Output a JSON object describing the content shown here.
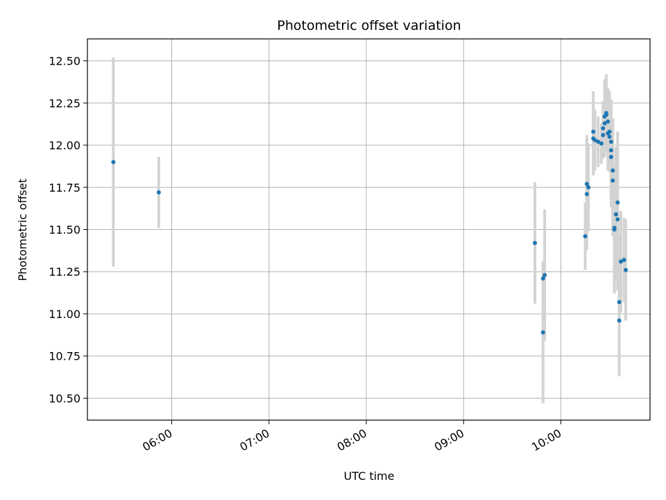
{
  "chart_data": {
    "type": "scatter",
    "title": "Photometric offset variation",
    "xlabel": "UTC time",
    "ylabel": "Photometric offset",
    "x_ticks": [
      "06:00",
      "07:00",
      "08:00",
      "09:00",
      "10:00"
    ],
    "y_ticks": [
      "10.50",
      "10.75",
      "11.00",
      "11.25",
      "11.50",
      "11.75",
      "12.00",
      "12.25",
      "12.50"
    ],
    "xlim": [
      "05:08",
      "10:55"
    ],
    "ylim": [
      10.37,
      12.63
    ],
    "grid": true,
    "colors": {
      "point": "#1f77b4",
      "errorbar": "#d3d3d3",
      "grid": "#b0b0b0"
    },
    "points": [
      {
        "x": "05:24",
        "y": 11.9,
        "err": 0.62
      },
      {
        "x": "05:52",
        "y": 11.72,
        "err": 0.21
      },
      {
        "x": "09:44",
        "y": 11.42,
        "err": 0.36
      },
      {
        "x": "09:49",
        "y": 10.89,
        "err": 0.42
      },
      {
        "x": "09:49",
        "y": 11.21,
        "err": 0.1
      },
      {
        "x": "09:50",
        "y": 11.23,
        "err": 0.39
      },
      {
        "x": "10:15",
        "y": 11.46,
        "err": 0.2
      },
      {
        "x": "10:16",
        "y": 11.77,
        "err": 0.29
      },
      {
        "x": "10:16",
        "y": 11.71,
        "err": 0.33
      },
      {
        "x": "10:17",
        "y": 11.75,
        "err": 0.26
      },
      {
        "x": "10:20",
        "y": 12.04,
        "err": 0.22
      },
      {
        "x": "10:20",
        "y": 12.08,
        "err": 0.24
      },
      {
        "x": "10:21",
        "y": 12.03,
        "err": 0.18
      },
      {
        "x": "10:23",
        "y": 12.02,
        "err": 0.15
      },
      {
        "x": "10:25",
        "y": 12.01,
        "err": 0.12
      },
      {
        "x": "10:26",
        "y": 12.06,
        "err": 0.14
      },
      {
        "x": "10:26",
        "y": 12.1,
        "err": 0.16
      },
      {
        "x": "10:27",
        "y": 12.13,
        "err": 0.2
      },
      {
        "x": "10:27",
        "y": 12.17,
        "err": 0.22
      },
      {
        "x": "10:28",
        "y": 12.19,
        "err": 0.23
      },
      {
        "x": "10:28",
        "y": 12.18,
        "err": 0.21
      },
      {
        "x": "10:29",
        "y": 12.14,
        "err": 0.2
      },
      {
        "x": "10:29",
        "y": 12.07,
        "err": 0.22
      },
      {
        "x": "10:30",
        "y": 12.05,
        "err": 0.21
      },
      {
        "x": "10:30",
        "y": 12.08,
        "err": 0.24
      },
      {
        "x": "10:31",
        "y": 12.02,
        "err": 0.25
      },
      {
        "x": "10:31",
        "y": 11.97,
        "err": 0.28
      },
      {
        "x": "10:31",
        "y": 11.93,
        "err": 0.3
      },
      {
        "x": "10:32",
        "y": 11.85,
        "err": 0.31
      },
      {
        "x": "10:32",
        "y": 11.79,
        "err": 0.33
      },
      {
        "x": "10:33",
        "y": 11.51,
        "err": 0.37
      },
      {
        "x": "10:33",
        "y": 11.5,
        "err": 0.38
      },
      {
        "x": "10:34",
        "y": 11.59,
        "err": 0.4
      },
      {
        "x": "10:35",
        "y": 11.66,
        "err": 0.42
      },
      {
        "x": "10:35",
        "y": 11.56,
        "err": 0.42
      },
      {
        "x": "10:36",
        "y": 11.07,
        "err": 0.4
      },
      {
        "x": "10:36",
        "y": 10.96,
        "err": 0.33
      },
      {
        "x": "10:37",
        "y": 11.31,
        "err": 0.3
      },
      {
        "x": "10:39",
        "y": 11.32,
        "err": 0.25
      },
      {
        "x": "10:40",
        "y": 11.26,
        "err": 0.3
      }
    ]
  }
}
